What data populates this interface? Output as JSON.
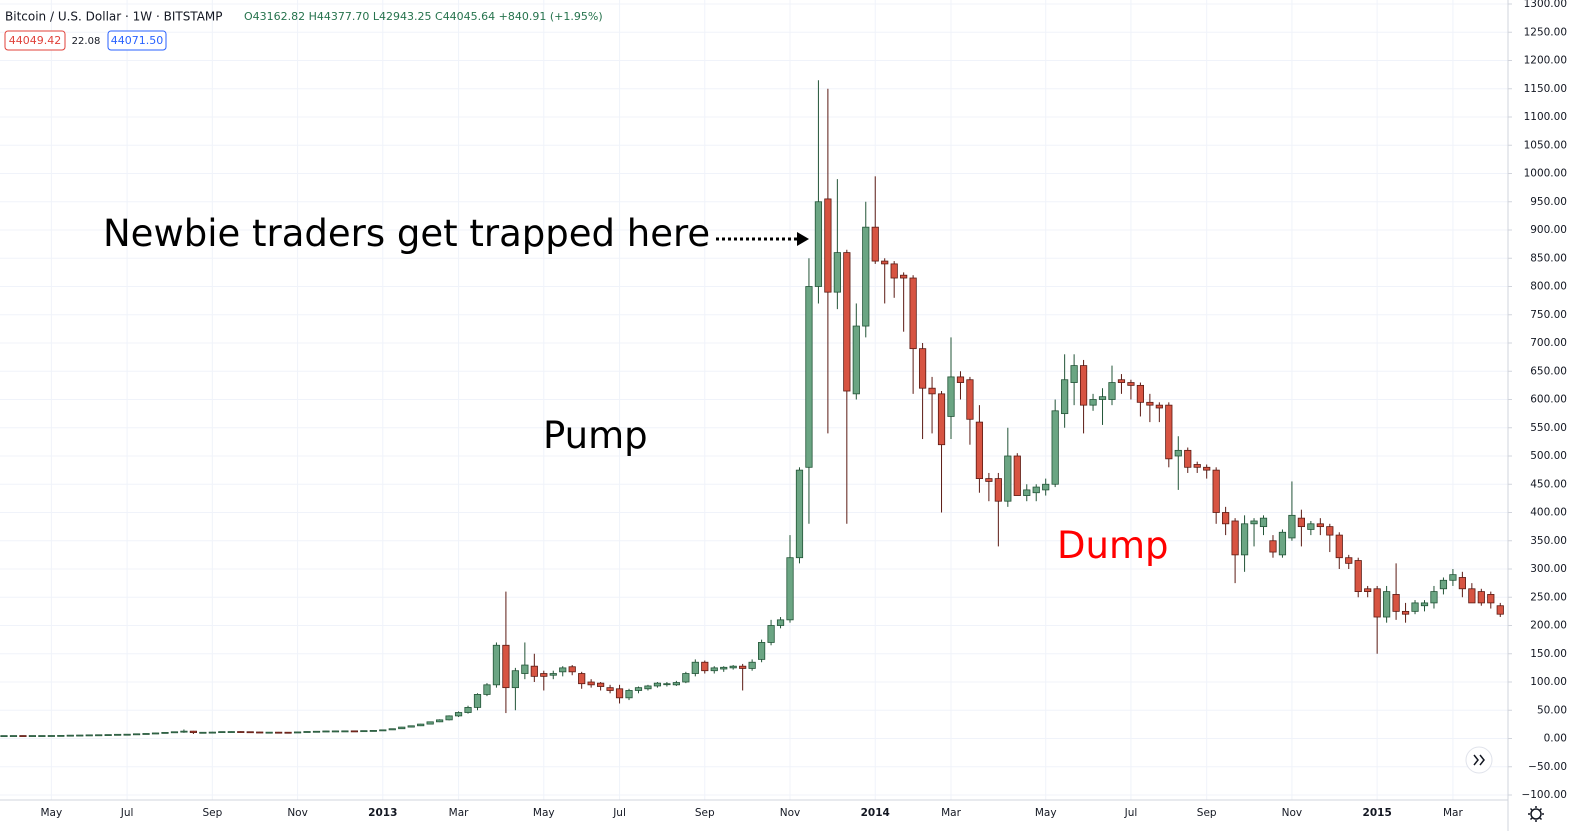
{
  "chart_data": {
    "type": "candlestick",
    "title": "Bitcoin / U.S. Dollar · 1W · BITSTAMP",
    "quote": "O43162.82 H44377.70 L42943.25 C44045.64 +840.91 (+1.95%)",
    "price_boxes": [
      "44049.42",
      "22.08",
      "44071.50"
    ],
    "annotations": [
      "Newbie traders get trapped here",
      "Pump",
      "Dump"
    ],
    "up_color": "#6ba583",
    "down_color": "#d75442",
    "ylim": [
      -100,
      1300
    ],
    "yticks": [
      {
        "value": -100,
        "label": "−100.00"
      },
      {
        "value": -50,
        "label": "−50.00"
      },
      {
        "value": 0,
        "label": "0.00"
      },
      {
        "value": 50,
        "label": "50.00"
      },
      {
        "value": 100,
        "label": "100.00"
      },
      {
        "value": 150,
        "label": "150.00"
      },
      {
        "value": 200,
        "label": "200.00"
      },
      {
        "value": 250,
        "label": "250.00"
      },
      {
        "value": 300,
        "label": "300.00"
      },
      {
        "value": 350,
        "label": "350.00"
      },
      {
        "value": 400,
        "label": "400.00"
      },
      {
        "value": 450,
        "label": "450.00"
      },
      {
        "value": 500,
        "label": "500.00"
      },
      {
        "value": 550,
        "label": "550.00"
      },
      {
        "value": 600,
        "label": "600.00"
      },
      {
        "value": 650,
        "label": "650.00"
      },
      {
        "value": 700,
        "label": "700.00"
      },
      {
        "value": 750,
        "label": "750.00"
      },
      {
        "value": 800,
        "label": "800.00"
      },
      {
        "value": 850,
        "label": "850.00"
      },
      {
        "value": 900,
        "label": "900.00"
      },
      {
        "value": 950,
        "label": "950.00"
      },
      {
        "value": 1000,
        "label": "1000.00"
      },
      {
        "value": 1050,
        "label": "1050.00"
      },
      {
        "value": 1100,
        "label": "1100.00"
      },
      {
        "value": 1150,
        "label": "1150.00"
      },
      {
        "value": 1200,
        "label": "1200.00"
      },
      {
        "value": 1250,
        "label": "1250.00"
      },
      {
        "value": 1300,
        "label": "1300.00"
      }
    ],
    "grid": true,
    "categories": [
      null,
      null,
      null,
      null,
      null,
      "May",
      null,
      null,
      null,
      null,
      null,
      null,
      null,
      "Jul",
      null,
      null,
      null,
      null,
      null,
      null,
      null,
      null,
      "Sep",
      null,
      null,
      null,
      null,
      null,
      null,
      null,
      null,
      "Nov",
      null,
      null,
      null,
      null,
      null,
      null,
      null,
      null,
      "2013",
      null,
      null,
      null,
      null,
      null,
      null,
      null,
      "Mar",
      null,
      null,
      null,
      null,
      null,
      null,
      null,
      null,
      "May",
      null,
      null,
      null,
      null,
      null,
      null,
      null,
      "Jul",
      null,
      null,
      null,
      null,
      null,
      null,
      null,
      null,
      "Sep",
      null,
      null,
      null,
      null,
      null,
      null,
      null,
      null,
      "Nov",
      null,
      null,
      null,
      null,
      null,
      null,
      null,
      null,
      "2014",
      null,
      null,
      null,
      null,
      null,
      null,
      null,
      "Mar",
      null,
      null,
      null,
      null,
      null,
      null,
      null,
      null,
      null,
      "May",
      null,
      null,
      null,
      null,
      null,
      null,
      null,
      null,
      "Jul",
      null,
      null,
      null,
      null,
      null,
      null,
      null,
      "Sep",
      null,
      null,
      null,
      null,
      null,
      null,
      null,
      null,
      "Nov",
      null,
      null,
      null,
      null,
      null,
      null,
      null,
      null,
      "2015",
      null,
      null,
      null,
      null,
      null,
      null,
      null,
      "Mar",
      null,
      null,
      null,
      null,
      null,
      null
    ],
    "ohlc": [
      [
        5,
        5.2,
        4.9,
        5.1
      ],
      [
        5.1,
        5.3,
        5,
        5.2
      ],
      [
        5.2,
        5.4,
        5,
        5.1
      ],
      [
        5.1,
        5.3,
        5,
        5.2
      ],
      [
        5.2,
        5.3,
        5,
        5.2
      ],
      [
        5.2,
        5.4,
        5.1,
        5.3
      ],
      [
        5.3,
        5.6,
        5.2,
        5.5
      ],
      [
        5.5,
        6,
        5.4,
        5.9
      ],
      [
        5.9,
        6.2,
        5.7,
        6.1
      ],
      [
        6.1,
        6.5,
        6,
        6.4
      ],
      [
        6.4,
        6.8,
        6.2,
        6.6
      ],
      [
        6.6,
        7,
        6.5,
        6.9
      ],
      [
        6.9,
        7.5,
        6.8,
        7.4
      ],
      [
        7.4,
        7.8,
        7,
        7.6
      ],
      [
        7.6,
        8.5,
        7.5,
        8.3
      ],
      [
        8.3,
        9,
        8,
        8.9
      ],
      [
        8.9,
        10,
        8.7,
        9.8
      ],
      [
        9.8,
        11,
        9.5,
        10.8
      ],
      [
        10.8,
        12,
        10.5,
        11.9
      ],
      [
        11.9,
        16,
        10,
        13
      ],
      [
        13,
        13.5,
        8,
        10.5
      ],
      [
        10.5,
        11.5,
        10,
        11
      ],
      [
        11,
        11.8,
        10.5,
        11.3
      ],
      [
        11.3,
        12.4,
        11,
        12.2
      ],
      [
        12.2,
        12.6,
        11.8,
        12.3
      ],
      [
        12.3,
        12.8,
        11.6,
        12
      ],
      [
        12,
        12.3,
        11,
        11.5
      ],
      [
        11.5,
        11.8,
        10.5,
        10.9
      ],
      [
        10.9,
        11.5,
        10.6,
        11.2
      ],
      [
        11.2,
        11.6,
        10.8,
        11.1
      ],
      [
        11.1,
        11.5,
        10.8,
        11
      ],
      [
        11,
        11.8,
        10.9,
        11.6
      ],
      [
        11.6,
        12.6,
        11.5,
        12.4
      ],
      [
        12.4,
        13,
        12.2,
        12.8
      ],
      [
        12.8,
        13.5,
        12.6,
        13.3
      ],
      [
        13.3,
        13.6,
        13,
        13.4
      ],
      [
        13.4,
        13.8,
        13.2,
        13.5
      ],
      [
        13.5,
        13.7,
        13.1,
        13.4
      ],
      [
        13.4,
        14,
        13.3,
        13.9
      ],
      [
        13.9,
        14.5,
        13.7,
        14.3
      ],
      [
        14.3,
        15.5,
        14,
        15.3
      ],
      [
        15.3,
        17.5,
        15,
        17.3
      ],
      [
        17.3,
        20.5,
        17,
        20.2
      ],
      [
        20.2,
        23,
        19.5,
        22.5
      ],
      [
        22.5,
        26,
        22,
        25.5
      ],
      [
        25.5,
        30,
        25,
        29.5
      ],
      [
        29.5,
        34,
        29,
        33
      ],
      [
        33,
        41,
        32,
        40
      ],
      [
        40,
        48,
        38,
        46
      ],
      [
        46,
        58,
        44,
        55
      ],
      [
        55,
        80,
        50,
        78
      ],
      [
        78,
        98,
        75,
        95
      ],
      [
        95,
        170,
        90,
        165
      ],
      [
        165,
        260,
        45,
        90
      ],
      [
        90,
        125,
        50,
        120
      ],
      [
        115,
        170,
        105,
        130
      ],
      [
        128,
        150,
        100,
        110
      ],
      [
        115,
        120,
        85,
        110
      ],
      [
        112,
        120,
        105,
        115
      ],
      [
        118,
        128,
        110,
        125
      ],
      [
        127,
        130,
        112,
        118
      ],
      [
        115,
        118,
        88,
        97
      ],
      [
        100,
        105,
        90,
        95
      ],
      [
        98,
        100,
        85,
        92
      ],
      [
        90,
        95,
        80,
        85
      ],
      [
        88,
        95,
        62,
        72
      ],
      [
        72,
        88,
        68,
        85
      ],
      [
        85,
        92,
        80,
        90
      ],
      [
        88,
        95,
        85,
        93
      ],
      [
        93,
        100,
        90,
        98
      ],
      [
        96,
        100,
        92,
        97
      ],
      [
        95,
        102,
        93,
        99
      ],
      [
        100,
        118,
        98,
        115
      ],
      [
        115,
        140,
        110,
        135
      ],
      [
        135,
        138,
        115,
        120
      ],
      [
        120,
        128,
        115,
        125
      ],
      [
        123,
        128,
        118,
        126
      ],
      [
        125,
        130,
        122,
        128
      ],
      [
        128,
        132,
        85,
        124
      ],
      [
        124,
        140,
        120,
        135
      ],
      [
        140,
        175,
        135,
        170
      ],
      [
        170,
        210,
        165,
        200
      ],
      [
        200,
        215,
        195,
        210
      ],
      [
        210,
        360,
        205,
        320
      ],
      [
        320,
        480,
        310,
        475
      ],
      [
        480,
        850,
        380,
        800
      ],
      [
        800,
        1165,
        770,
        950
      ],
      [
        955,
        1150,
        540,
        790
      ],
      [
        790,
        990,
        760,
        860
      ],
      [
        860,
        865,
        380,
        615
      ],
      [
        610,
        770,
        600,
        730
      ],
      [
        730,
        950,
        710,
        905
      ],
      [
        905,
        995,
        840,
        845
      ],
      [
        845,
        850,
        770,
        840
      ],
      [
        840,
        845,
        780,
        815
      ],
      [
        820,
        825,
        720,
        815
      ],
      [
        815,
        820,
        610,
        690
      ],
      [
        690,
        700,
        530,
        620
      ],
      [
        620,
        640,
        540,
        610
      ],
      [
        610,
        615,
        400,
        520
      ],
      [
        570,
        710,
        530,
        640
      ],
      [
        640,
        650,
        600,
        630
      ],
      [
        635,
        640,
        520,
        565
      ],
      [
        560,
        590,
        435,
        460
      ],
      [
        460,
        470,
        420,
        455
      ],
      [
        460,
        470,
        340,
        420
      ],
      [
        420,
        550,
        410,
        500
      ],
      [
        500,
        505,
        430,
        430
      ],
      [
        430,
        450,
        420,
        440
      ],
      [
        435,
        450,
        420,
        445
      ],
      [
        440,
        460,
        430,
        450
      ],
      [
        450,
        600,
        445,
        580
      ],
      [
        575,
        680,
        550,
        635
      ],
      [
        630,
        680,
        590,
        660
      ],
      [
        660,
        670,
        540,
        590
      ],
      [
        590,
        610,
        580,
        600
      ],
      [
        600,
        620,
        555,
        605
      ],
      [
        600,
        660,
        590,
        630
      ],
      [
        635,
        645,
        610,
        630
      ],
      [
        630,
        635,
        600,
        625
      ],
      [
        625,
        630,
        570,
        595
      ],
      [
        595,
        610,
        560,
        590
      ],
      [
        590,
        595,
        560,
        585
      ],
      [
        590,
        595,
        480,
        495
      ],
      [
        500,
        535,
        440,
        510
      ],
      [
        510,
        515,
        470,
        480
      ],
      [
        485,
        490,
        470,
        480
      ],
      [
        480,
        485,
        460,
        475
      ],
      [
        475,
        480,
        380,
        400
      ],
      [
        400,
        410,
        360,
        380
      ],
      [
        385,
        390,
        275,
        325
      ],
      [
        325,
        395,
        295,
        380
      ],
      [
        380,
        390,
        340,
        385
      ],
      [
        375,
        395,
        360,
        390
      ],
      [
        350,
        360,
        320,
        330
      ],
      [
        325,
        370,
        320,
        365
      ],
      [
        355,
        455,
        350,
        395
      ],
      [
        390,
        405,
        340,
        375
      ],
      [
        370,
        385,
        360,
        380
      ],
      [
        380,
        390,
        360,
        375
      ],
      [
        375,
        380,
        330,
        360
      ],
      [
        360,
        365,
        300,
        320
      ],
      [
        320,
        325,
        300,
        310
      ],
      [
        315,
        320,
        250,
        260
      ],
      [
        265,
        270,
        250,
        260
      ],
      [
        265,
        270,
        150,
        215
      ],
      [
        215,
        270,
        205,
        260
      ],
      [
        255,
        310,
        210,
        225
      ],
      [
        225,
        240,
        205,
        220
      ],
      [
        225,
        245,
        220,
        240
      ],
      [
        235,
        245,
        225,
        240
      ],
      [
        240,
        270,
        230,
        260
      ],
      [
        265,
        285,
        255,
        280
      ],
      [
        280,
        300,
        270,
        290
      ],
      [
        285,
        295,
        250,
        265
      ],
      [
        265,
        275,
        240,
        240
      ],
      [
        260,
        265,
        235,
        240
      ],
      [
        255,
        260,
        230,
        240
      ],
      [
        235,
        240,
        215,
        220
      ],
      [
        220,
        225,
        205,
        210
      ]
    ]
  }
}
